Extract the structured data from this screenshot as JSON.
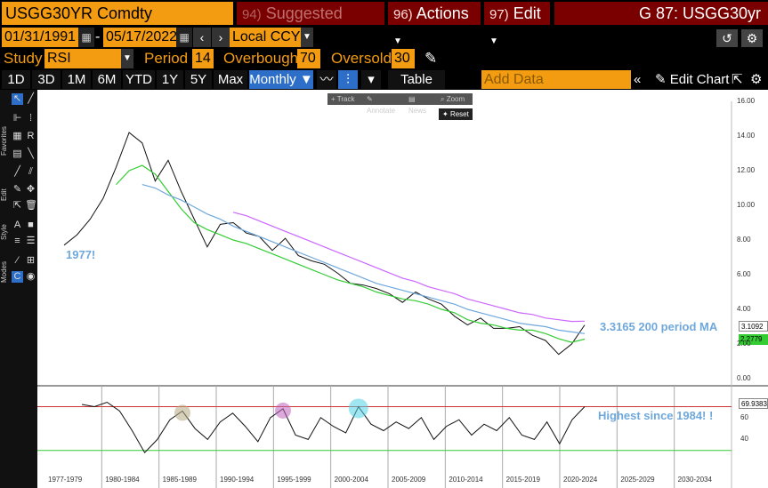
{
  "header": {
    "security": "USGG30YR Comdty",
    "menus": [
      {
        "num": "94)",
        "label": "Suggested Charts",
        "dim": true
      },
      {
        "num": "96)",
        "label": "Actions",
        "dim": false
      },
      {
        "num": "97)",
        "label": "Edit",
        "dim": false
      }
    ],
    "chart_id": "G 87: USGG30yr"
  },
  "date_bar": {
    "start": "01/31/1991",
    "end": "05/17/2022",
    "currency": "Local CCY",
    "dash": "-",
    "prev": "‹",
    "next": "›",
    "undo": "↺",
    "settings": "⚙"
  },
  "study_bar": {
    "study_label": "Study",
    "study_value": "RSI",
    "period_label": "Period",
    "period_value": "14",
    "overbought_label": "Overbought",
    "overbought_value": "70",
    "oversold_label": "Oversold",
    "oversold_value": "30"
  },
  "toolbar": {
    "ranges": [
      "1D",
      "3D",
      "1M",
      "6M",
      "YTD",
      "1Y",
      "5Y",
      "Max"
    ],
    "frequency": "Monthly ▼",
    "table": "Table",
    "add_data_placeholder": "Add Data",
    "edit_chart": "Edit Chart"
  },
  "sidebar_tabs": [
    "Favorites",
    "Edit",
    "Style",
    "Modes"
  ],
  "popups": {
    "track": "Track",
    "annotate": "Annotate",
    "news": "News",
    "zoom": "Zoom",
    "reset": "Reset"
  },
  "annotations": {
    "year1977": "1977!",
    "ma_label": "3.3165 200 period MA",
    "rsi_label": "Highest since 1984! !"
  },
  "price_tags": {
    "last": "3.1092",
    "ma": "2.2779",
    "rsi": "69.9383"
  },
  "colors": {
    "accent": "#f39c12",
    "menu": "#7a0000",
    "ma_blue": "#6fa8dc",
    "ma_green": "#33cc33",
    "ma_purple": "#cc66ff"
  },
  "chart_data": [
    {
      "type": "line",
      "yticks": [
        "16.00",
        "14.00",
        "12.00",
        "10.00",
        "8.00",
        "6.00",
        "4.00",
        "2.00",
        "0.00"
      ],
      "ylim": [
        0,
        16
      ],
      "xticks": [
        "1977-1979",
        "1980-1984",
        "1985-1989",
        "1990-1994",
        "1995-1999",
        "2000-2004",
        "2005-2009",
        "2010-2014",
        "2015-2019",
        "2020-2024",
        "2025-2029",
        "2030-2034"
      ],
      "series": [
        {
          "values": [
            7.7,
            8.3,
            9.2,
            10.4,
            12.2,
            14.2,
            13.6,
            11.4,
            12.6,
            10.8,
            9.2,
            7.6,
            8.9,
            9.0,
            8.4,
            8.2,
            7.4,
            8.1,
            7.1,
            6.8,
            6.6,
            6.1,
            5.5,
            5.4,
            5.2,
            4.9,
            4.4,
            5.0,
            4.6,
            4.3,
            3.6,
            3.1,
            3.5,
            2.9,
            2.9,
            3.0,
            2.5,
            2.2,
            1.4,
            2.0,
            3.1
          ]
        },
        {
          "values": [
            null,
            null,
            null,
            null,
            11.2,
            12.0,
            12.3,
            11.8,
            10.8,
            9.8,
            9.0,
            8.6,
            8.3,
            8.0,
            7.8,
            7.5,
            7.2,
            6.9,
            6.6,
            6.3,
            6.0,
            5.7,
            5.5,
            5.3,
            5.0,
            4.8,
            4.6,
            4.5,
            4.3,
            4.0,
            3.8,
            3.4,
            3.2,
            3.1,
            2.9,
            2.8,
            2.8,
            2.6,
            2.3,
            2.1,
            2.28
          ]
        },
        {
          "values": [
            null,
            null,
            null,
            null,
            null,
            null,
            11.2,
            11.0,
            10.6,
            10.3,
            9.9,
            9.5,
            9.2,
            8.8,
            8.5,
            8.2,
            7.9,
            7.6,
            7.3,
            7.0,
            6.7,
            6.4,
            6.1,
            5.8,
            5.5,
            5.3,
            5.1,
            4.9,
            4.7,
            4.5,
            4.3,
            4.0,
            3.8,
            3.6,
            3.4,
            3.2,
            3.1,
            3.0,
            2.8,
            2.7,
            2.6
          ]
        },
        {
          "values": [
            null,
            null,
            null,
            null,
            null,
            null,
            null,
            null,
            null,
            null,
            null,
            null,
            null,
            9.6,
            9.4,
            9.1,
            8.8,
            8.5,
            8.2,
            7.9,
            7.6,
            7.3,
            7.0,
            6.7,
            6.4,
            6.1,
            5.8,
            5.6,
            5.3,
            5.1,
            4.9,
            4.6,
            4.4,
            4.2,
            4.0,
            3.8,
            3.7,
            3.5,
            3.4,
            3.3,
            3.3165
          ]
        }
      ]
    },
    {
      "type": "line",
      "yticks": [
        "60",
        "40"
      ],
      "ylim": [
        20,
        85
      ],
      "series": [
        {
          "values": [
            72,
            70,
            74,
            66,
            48,
            28,
            40,
            58,
            66,
            50,
            40,
            56,
            64,
            52,
            38,
            60,
            68,
            44,
            40,
            60,
            52,
            46,
            70,
            54,
            48,
            56,
            50,
            60,
            40,
            52,
            58,
            44,
            54,
            48,
            60,
            44,
            40,
            56,
            36,
            58,
            70
          ]
        }
      ],
      "lines": [
        {
          "value": 70
        },
        {
          "value": 30
        }
      ]
    }
  ]
}
